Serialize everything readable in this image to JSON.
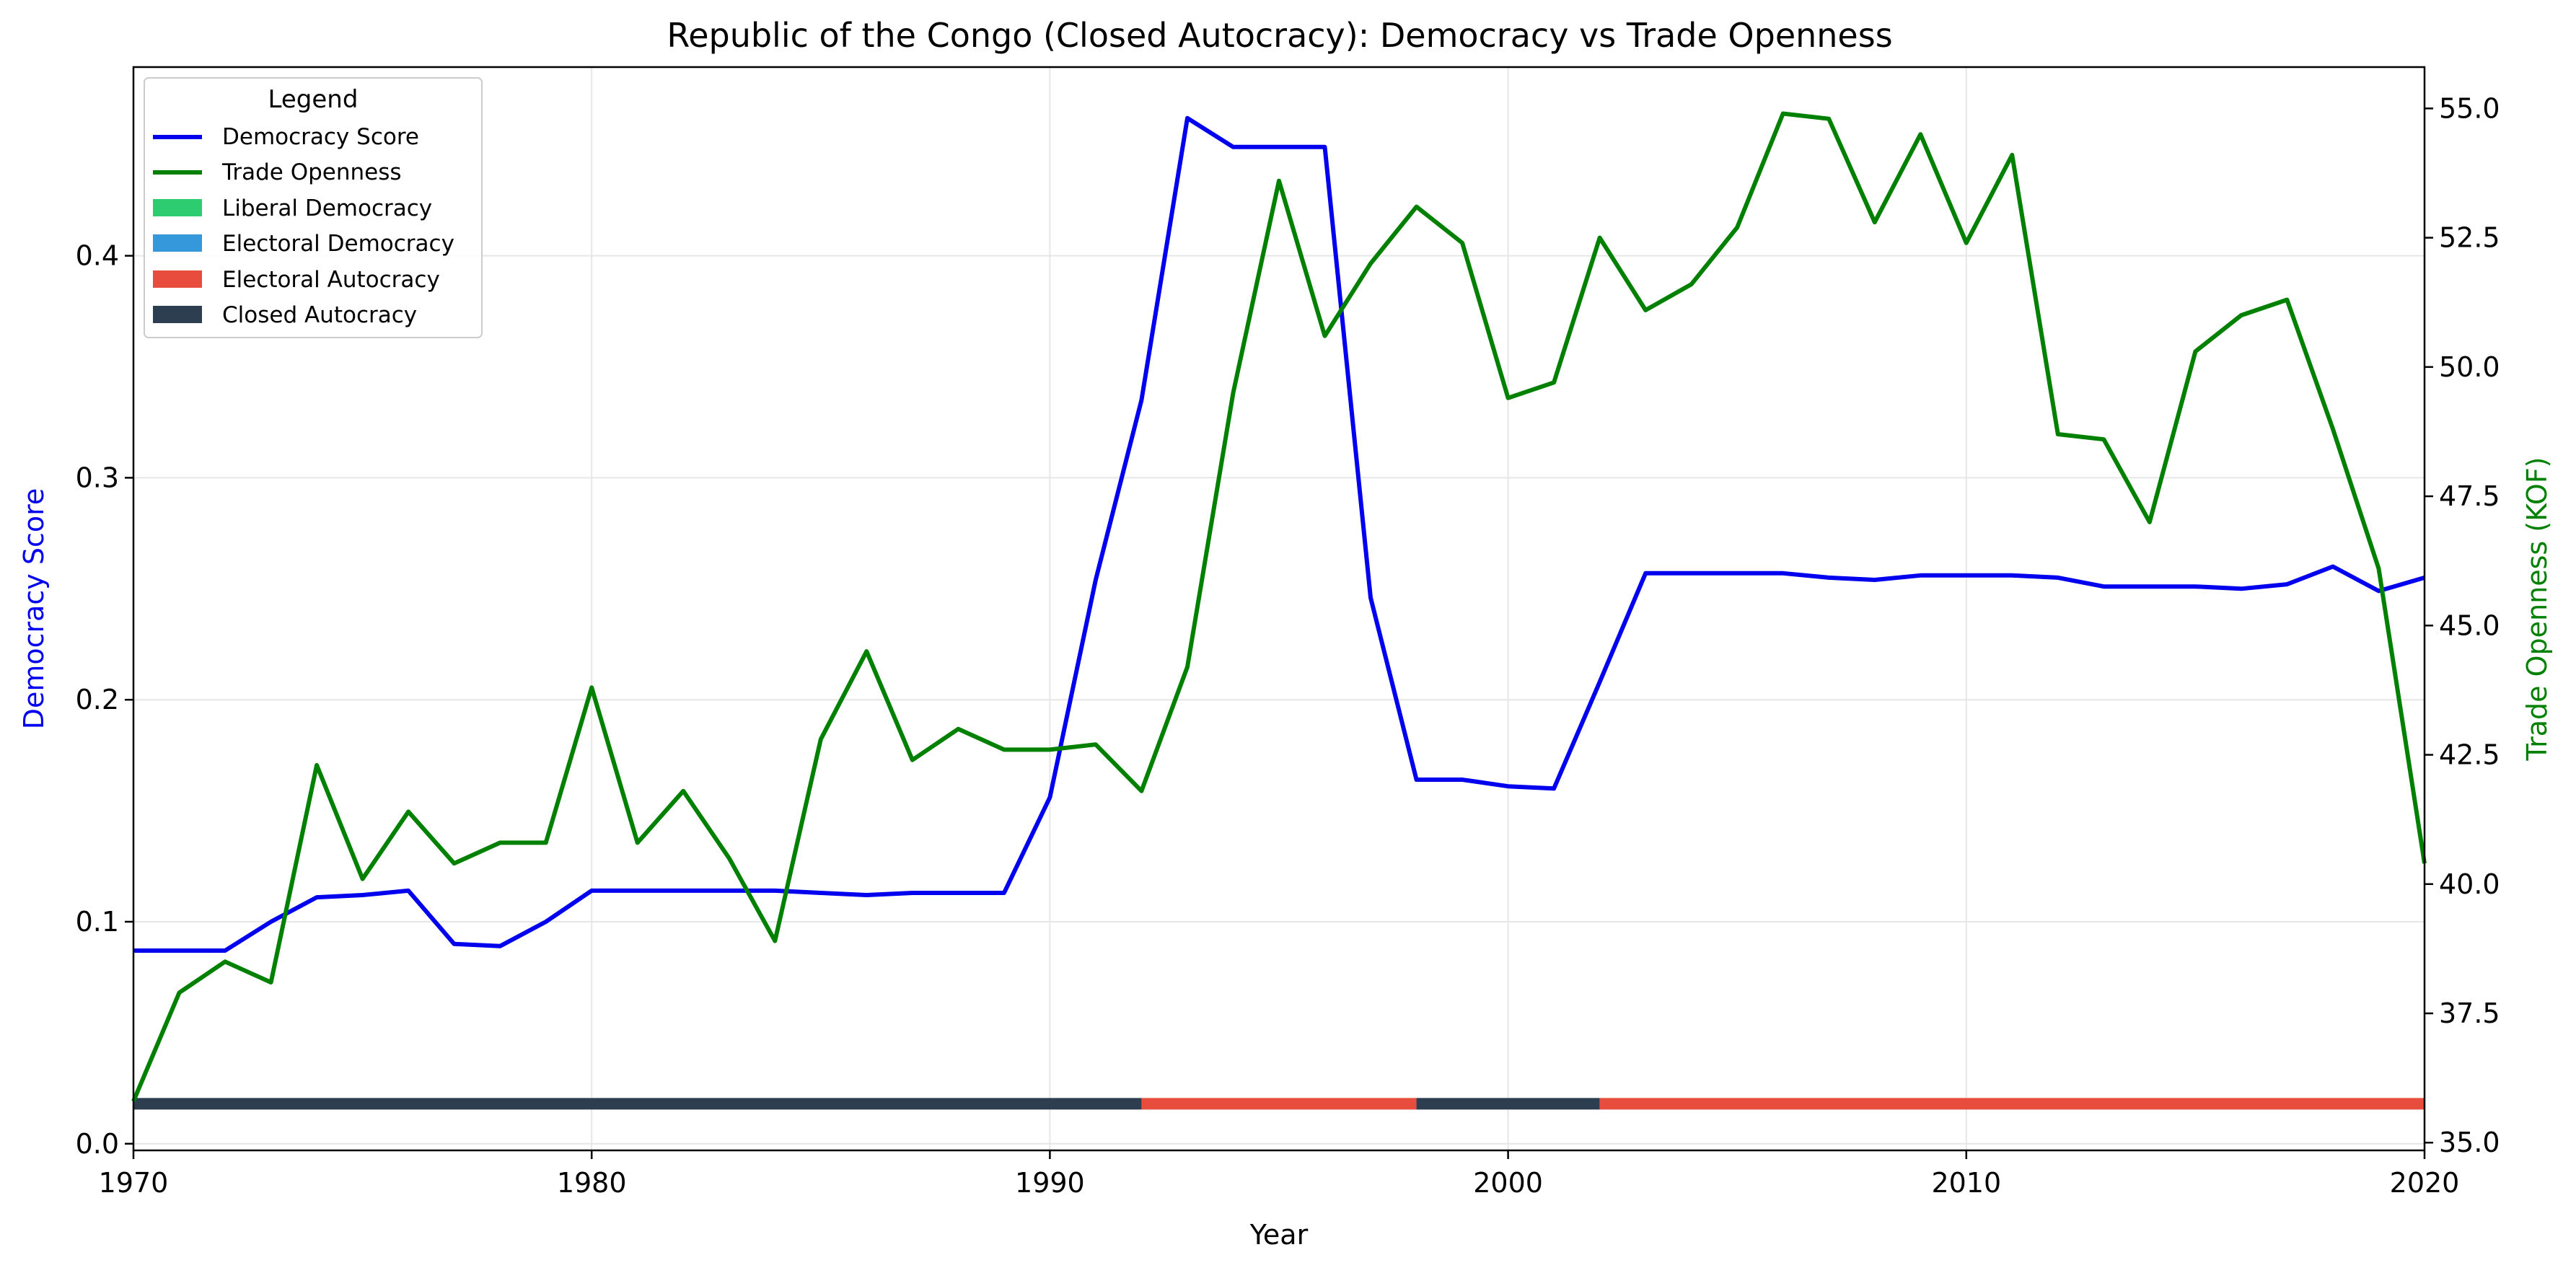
{
  "chart_data": {
    "type": "line",
    "title": "Republic of the Congo (Closed Autocracy): Democracy vs Trade Openness",
    "xlabel": "Year",
    "ylabel_left": "Democracy Score",
    "ylabel_right": "Trade Openness (KOF)",
    "xlim": [
      1970,
      2020
    ],
    "ylim_left": [
      -0.003,
      0.485
    ],
    "ylim_right": [
      34.85,
      55.8
    ],
    "x_ticks": [
      1970,
      1980,
      1990,
      2000,
      2010,
      2020
    ],
    "y_left_ticks": [
      "0.0",
      "0.1",
      "0.2",
      "0.3",
      "0.4"
    ],
    "y_right_ticks": [
      "35.0",
      "37.5",
      "40.0",
      "42.5",
      "45.0",
      "47.5",
      "50.0",
      "52.5",
      "55.0"
    ],
    "grid": true,
    "legend": {
      "title": "Legend",
      "placement": "top-left",
      "entries": [
        "Democracy Score",
        "Trade Openness",
        "Liberal Democracy",
        "Electoral Democracy",
        "Electoral Autocracy",
        "Closed Autocracy"
      ]
    },
    "colors": {
      "democracy": "#0000ee",
      "trade": "#008000",
      "liberal_democracy": "#2ecc71",
      "electoral_democracy": "#3498db",
      "electoral_autocracy": "#e74c3c",
      "closed_autocracy": "#2c3e50"
    },
    "x": [
      1970,
      1971,
      1972,
      1973,
      1974,
      1975,
      1976,
      1977,
      1978,
      1979,
      1980,
      1981,
      1982,
      1983,
      1984,
      1985,
      1986,
      1987,
      1988,
      1989,
      1990,
      1991,
      1992,
      1993,
      1994,
      1995,
      1996,
      1997,
      1998,
      1999,
      2000,
      2001,
      2002,
      2003,
      2004,
      2005,
      2006,
      2007,
      2008,
      2009,
      2010,
      2011,
      2012,
      2013,
      2014,
      2015,
      2016,
      2017,
      2018,
      2019,
      2020
    ],
    "series": [
      {
        "name": "Democracy Score",
        "axis": "left",
        "values": [
          0.087,
          0.087,
          0.087,
          0.1,
          0.111,
          0.112,
          0.114,
          0.09,
          0.089,
          0.1,
          0.114,
          0.114,
          0.114,
          0.114,
          0.114,
          0.113,
          0.112,
          0.113,
          0.113,
          0.113,
          0.156,
          0.254,
          0.335,
          0.462,
          0.449,
          0.449,
          0.449,
          0.246,
          0.164,
          0.164,
          0.161,
          0.16,
          0.208,
          0.257,
          0.257,
          0.257,
          0.257,
          0.255,
          0.254,
          0.256,
          0.256,
          0.256,
          0.255,
          0.251,
          0.251,
          0.251,
          0.25,
          0.252,
          0.26,
          0.249,
          0.255
        ]
      },
      {
        "name": "Trade Openness",
        "axis": "right",
        "values": [
          35.8,
          37.9,
          38.5,
          38.1,
          42.3,
          40.1,
          41.4,
          40.4,
          40.8,
          40.8,
          43.8,
          40.8,
          41.8,
          40.5,
          38.9,
          42.8,
          44.5,
          42.4,
          43.0,
          42.6,
          42.6,
          42.7,
          41.8,
          44.2,
          49.5,
          53.6,
          50.6,
          52.0,
          53.1,
          52.4,
          49.4,
          49.7,
          52.5,
          51.1,
          51.6,
          52.7,
          54.9,
          54.8,
          52.8,
          54.5,
          52.4,
          54.1,
          48.7,
          48.6,
          47.0,
          50.3,
          51.0,
          51.3,
          48.8,
          46.1,
          40.4
        ]
      }
    ],
    "regime_bands": [
      {
        "regime": "Closed Autocracy",
        "start": 1970,
        "end": 1992
      },
      {
        "regime": "Electoral Autocracy",
        "start": 1992,
        "end": 1998
      },
      {
        "regime": "Closed Autocracy",
        "start": 1998,
        "end": 2002
      },
      {
        "regime": "Electoral Autocracy",
        "start": 2002,
        "end": 2020
      }
    ]
  }
}
